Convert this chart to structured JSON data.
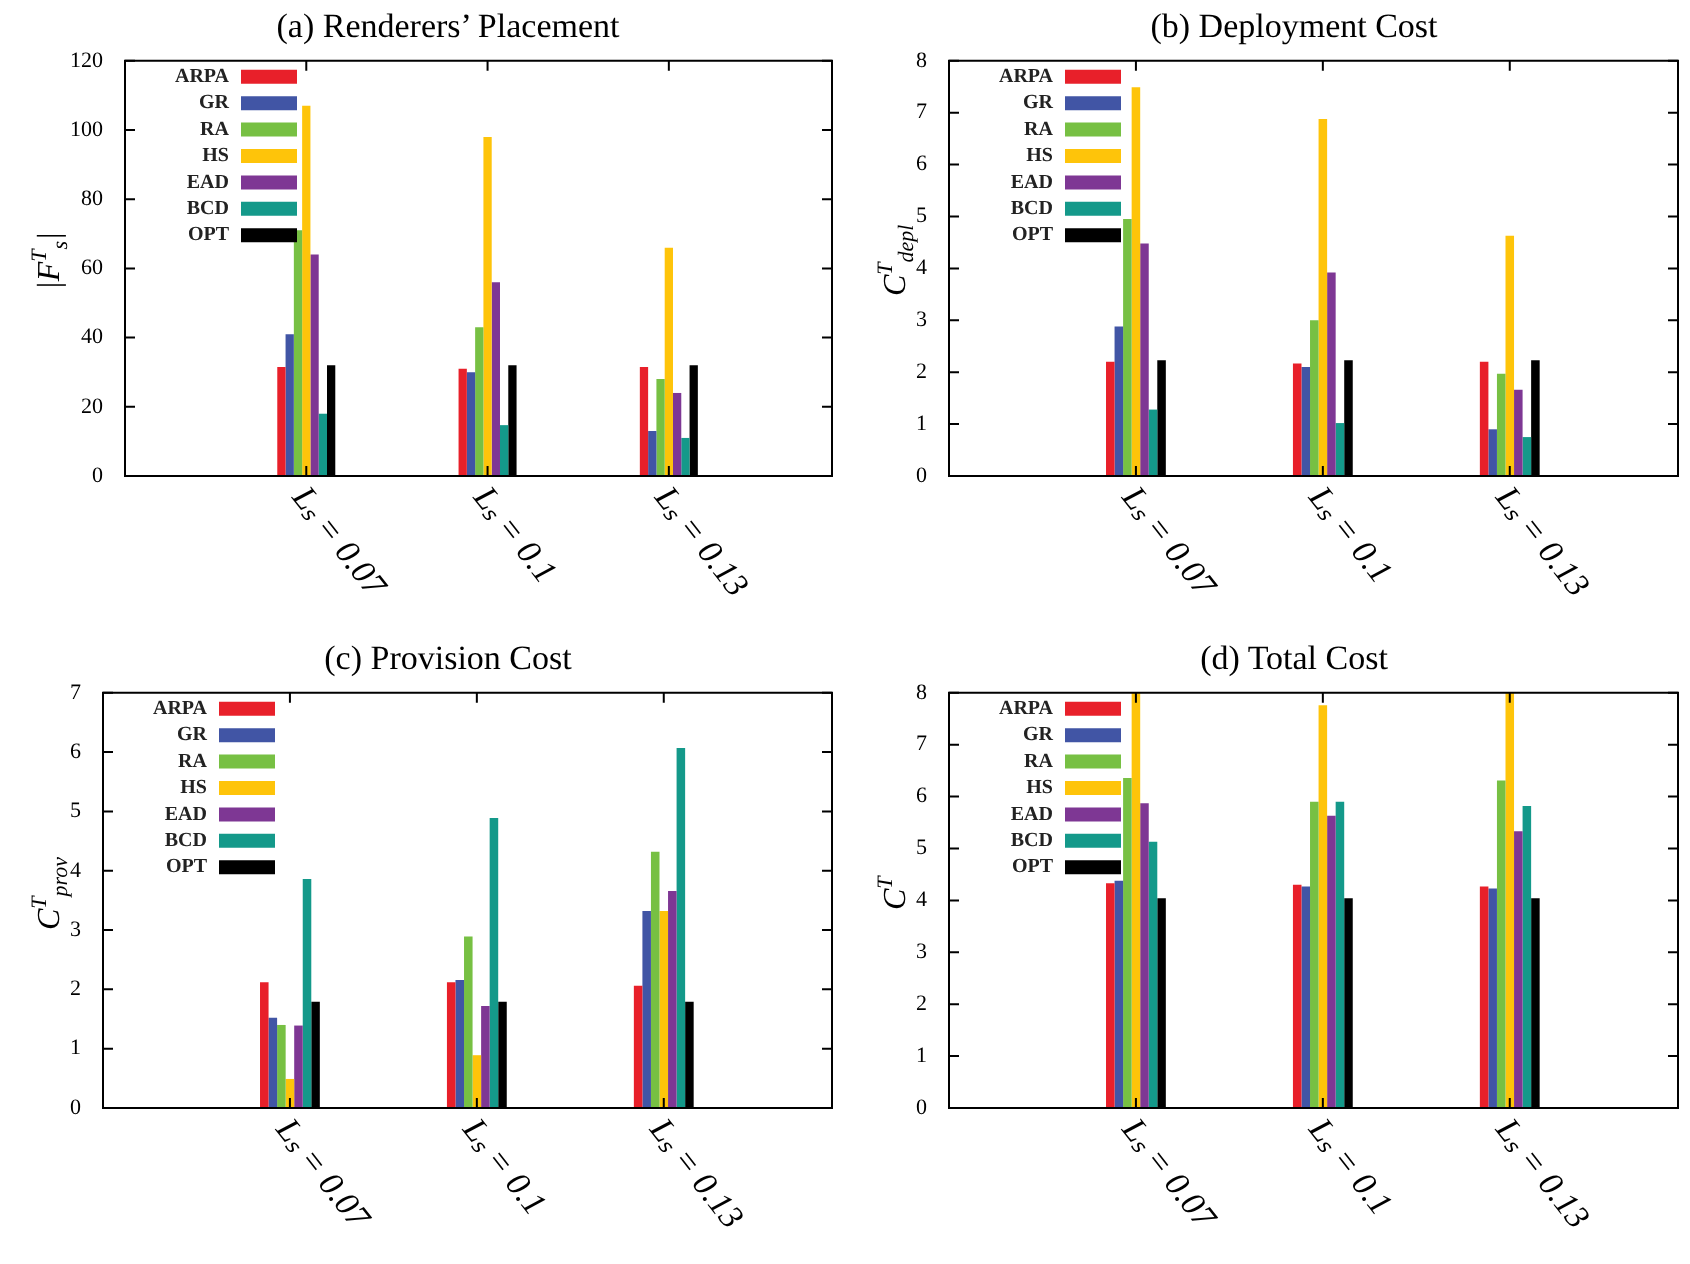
{
  "chart_data": [
    {
      "type": "bar",
      "title": "(a) Renderers’ Placement",
      "ylabel": "|F$^{T}$$_{s}$|",
      "categories": [
        "Lₛ = 0.07",
        "Lₛ = 0.1",
        "Lₛ = 0.13"
      ],
      "ylim": [
        0,
        120
      ],
      "yticks": [
        0,
        20,
        40,
        60,
        80,
        100,
        120
      ],
      "legend": "top left",
      "series": [
        {
          "name": "ARPA",
          "color": "#e8202a",
          "values": [
            31.5,
            31,
            31.5
          ]
        },
        {
          "name": "GR",
          "color": "#4155a5",
          "values": [
            41,
            30,
            13
          ]
        },
        {
          "name": "RA",
          "color": "#77c043",
          "values": [
            71,
            43,
            28
          ]
        },
        {
          "name": "HS",
          "color": "#fec40a",
          "values": [
            107,
            98,
            66
          ]
        },
        {
          "name": "EAD",
          "color": "#7e3794",
          "values": [
            64,
            56,
            24
          ]
        },
        {
          "name": "BCD",
          "color": "#14998a",
          "values": [
            18,
            14.7,
            11
          ]
        },
        {
          "name": "OPT",
          "color": "#000000",
          "values": [
            32,
            32,
            32
          ]
        }
      ]
    },
    {
      "type": "bar",
      "title": "(b) Deployment Cost",
      "ylabel": "C$^{T}$$_{depl}$",
      "categories": [
        "Lₛ = 0.07",
        "Lₛ = 0.1",
        "Lₛ = 0.13"
      ],
      "ylim": [
        0,
        8
      ],
      "yticks": [
        0,
        1,
        2,
        3,
        4,
        5,
        6,
        7,
        8
      ],
      "legend": "top left",
      "series": [
        {
          "name": "ARPA",
          "color": "#e8202a",
          "values": [
            2.2,
            2.17,
            2.2
          ]
        },
        {
          "name": "GR",
          "color": "#4155a5",
          "values": [
            2.88,
            2.1,
            0.9
          ]
        },
        {
          "name": "RA",
          "color": "#77c043",
          "values": [
            4.95,
            3.0,
            1.97
          ]
        },
        {
          "name": "HS",
          "color": "#fec40a",
          "values": [
            7.49,
            6.88,
            4.63
          ]
        },
        {
          "name": "EAD",
          "color": "#7e3794",
          "values": [
            4.48,
            3.92,
            1.66
          ]
        },
        {
          "name": "BCD",
          "color": "#14998a",
          "values": [
            1.28,
            1.02,
            0.75
          ]
        },
        {
          "name": "OPT",
          "color": "#000000",
          "values": [
            2.23,
            2.23,
            2.23
          ]
        }
      ]
    },
    {
      "type": "bar",
      "title": "(c) Provision Cost",
      "ylabel": "C$^{T}$$_{prov}$",
      "categories": [
        "Lₛ = 0.07",
        "Lₛ = 0.1",
        "Lₛ = 0.13"
      ],
      "ylim": [
        0,
        7
      ],
      "yticks": [
        0,
        1,
        2,
        3,
        4,
        5,
        6,
        7
      ],
      "legend": "top left",
      "series": [
        {
          "name": "ARPA",
          "color": "#e8202a",
          "values": [
            2.12,
            2.12,
            2.06
          ]
        },
        {
          "name": "GR",
          "color": "#4155a5",
          "values": [
            1.52,
            2.16,
            3.32
          ]
        },
        {
          "name": "RA",
          "color": "#77c043",
          "values": [
            1.4,
            2.89,
            4.32
          ]
        },
        {
          "name": "HS",
          "color": "#fec40a",
          "values": [
            0.49,
            0.89,
            3.32
          ]
        },
        {
          "name": "EAD",
          "color": "#7e3794",
          "values": [
            1.39,
            1.72,
            3.66
          ]
        },
        {
          "name": "BCD",
          "color": "#14998a",
          "values": [
            3.86,
            4.89,
            6.07
          ]
        },
        {
          "name": "OPT",
          "color": "#000000",
          "values": [
            1.79,
            1.79,
            1.79
          ]
        }
      ]
    },
    {
      "type": "bar",
      "title": "(d) Total Cost",
      "ylabel": "C$^{T}$",
      "categories": [
        "Lₛ = 0.07",
        "Lₛ = 0.1",
        "Lₛ = 0.13"
      ],
      "ylim": [
        0,
        8
      ],
      "yticks": [
        0,
        1,
        2,
        3,
        4,
        5,
        6,
        7,
        8
      ],
      "legend": "top left",
      "series": [
        {
          "name": "ARPA",
          "color": "#e8202a",
          "values": [
            4.33,
            4.3,
            4.27
          ]
        },
        {
          "name": "GR",
          "color": "#4155a5",
          "values": [
            4.38,
            4.27,
            4.23
          ]
        },
        {
          "name": "RA",
          "color": "#77c043",
          "values": [
            6.36,
            5.9,
            6.31
          ]
        },
        {
          "name": "HS",
          "color": "#fec40a",
          "values": [
            8,
            7.76,
            8
          ]
        },
        {
          "name": "EAD",
          "color": "#7e3794",
          "values": [
            5.87,
            5.63,
            5.33
          ]
        },
        {
          "name": "BCD",
          "color": "#14998a",
          "values": [
            5.13,
            5.9,
            5.82
          ]
        },
        {
          "name": "OPT",
          "color": "#000000",
          "values": [
            4.04,
            4.04,
            4.04
          ]
        }
      ]
    }
  ]
}
